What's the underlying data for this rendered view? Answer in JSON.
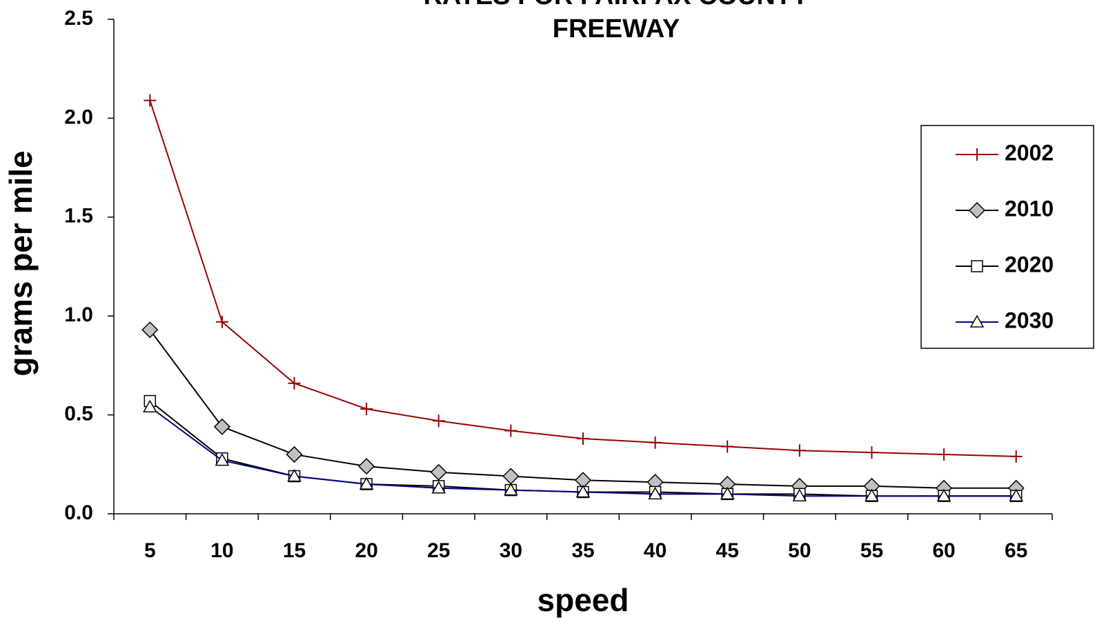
{
  "chart_data": {
    "type": "line",
    "title": [
      "RATES FOR FAIRFAX COUNTY",
      "FREEWAY"
    ],
    "x_label": "speed",
    "y_label": "grams per mile",
    "categories": [
      5,
      10,
      15,
      20,
      25,
      30,
      35,
      40,
      45,
      50,
      55,
      60,
      65
    ],
    "ylim": [
      0,
      2.5
    ],
    "yticks": [
      {
        "value": 0,
        "label": "0.0"
      },
      0.5,
      {
        "value": 1,
        "label": "1.0"
      },
      1.5,
      {
        "value": 2,
        "label": "2.0"
      },
      2.5
    ],
    "legend": "right",
    "series": [
      {
        "name": "2002",
        "color": "#990000",
        "marker": "plus",
        "values": [
          2.09,
          0.97,
          0.66,
          0.53,
          0.47,
          0.42,
          0.38,
          0.36,
          0.34,
          0.32,
          0.31,
          0.3,
          0.29
        ]
      },
      {
        "name": "2010",
        "color": "#000000",
        "marker": "diamond",
        "values": [
          0.93,
          0.44,
          0.3,
          0.24,
          0.21,
          0.19,
          0.17,
          0.16,
          0.15,
          0.14,
          0.14,
          0.13,
          0.13
        ]
      },
      {
        "name": "2020",
        "color": "#000000",
        "marker": "square",
        "values": [
          0.57,
          0.28,
          0.19,
          0.15,
          0.14,
          0.12,
          0.11,
          0.11,
          0.1,
          0.1,
          0.09,
          0.09,
          0.09
        ]
      },
      {
        "name": "2030",
        "color": "#000080",
        "marker": "triangle",
        "values": [
          0.54,
          0.27,
          0.19,
          0.15,
          0.13,
          0.12,
          0.11,
          0.1,
          0.1,
          0.09,
          0.09,
          0.09,
          0.09
        ]
      }
    ]
  }
}
